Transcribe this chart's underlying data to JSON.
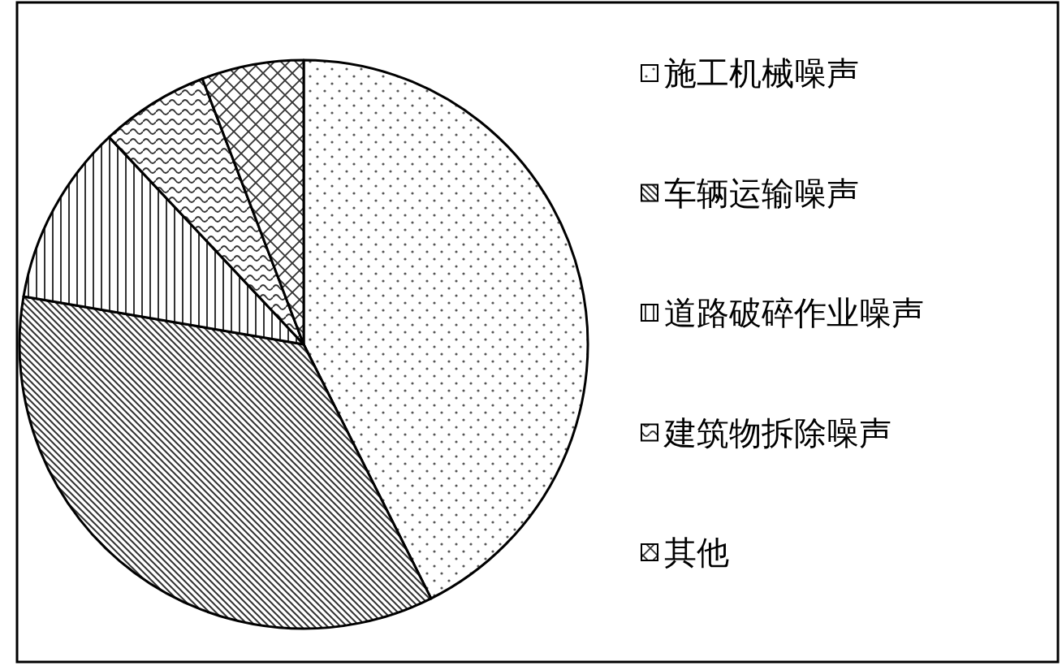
{
  "chart_data": {
    "type": "pie",
    "legend": "right",
    "categories": [
      "施工机械噪声",
      "车辆运输噪声",
      "道路破碎作业噪声",
      "建筑物拆除噪声",
      "其他"
    ],
    "values": [
      42.6,
      35.1,
      10.3,
      6.2,
      5.8
    ]
  }
}
